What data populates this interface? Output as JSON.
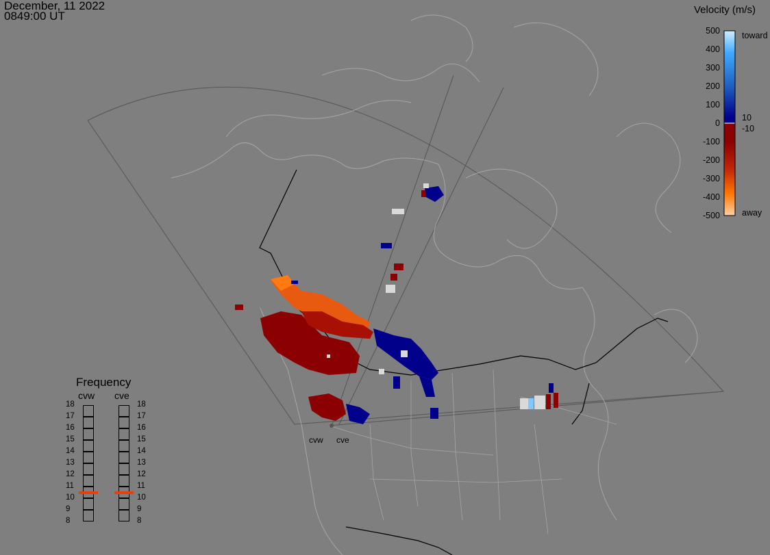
{
  "header": {
    "date": "December, 11 2022",
    "time": "0849:00 UT"
  },
  "legend": {
    "title": "Velocity (m/s)",
    "ticks": [
      "500",
      "400",
      "300",
      "200",
      "100",
      "0",
      "-100",
      "-200",
      "-300",
      "-400",
      "-500"
    ],
    "right_labels": [
      "toward",
      "10",
      "-10",
      "away"
    ],
    "colors": {
      "toward_max": "#cfeeff",
      "toward_light": "#3fa9ff",
      "toward_mid": "#1f5fbf",
      "toward_low": "#00008b",
      "near_zero": "#d9d9d9",
      "away_low": "#8b0000",
      "away_mid": "#c1270a",
      "away_high": "#ff7700",
      "away_max": "#ffd0a8"
    }
  },
  "frequency": {
    "title": "Frequency",
    "radars": [
      "cvw",
      "cve"
    ],
    "levels": [
      "18",
      "17",
      "16",
      "15",
      "14",
      "13",
      "12",
      "11",
      "10",
      "9",
      "8"
    ],
    "current_mhz": 10.5,
    "marker_color": "#e8400a"
  },
  "radars": {
    "west_label": "cvw",
    "east_label": "cve"
  }
}
